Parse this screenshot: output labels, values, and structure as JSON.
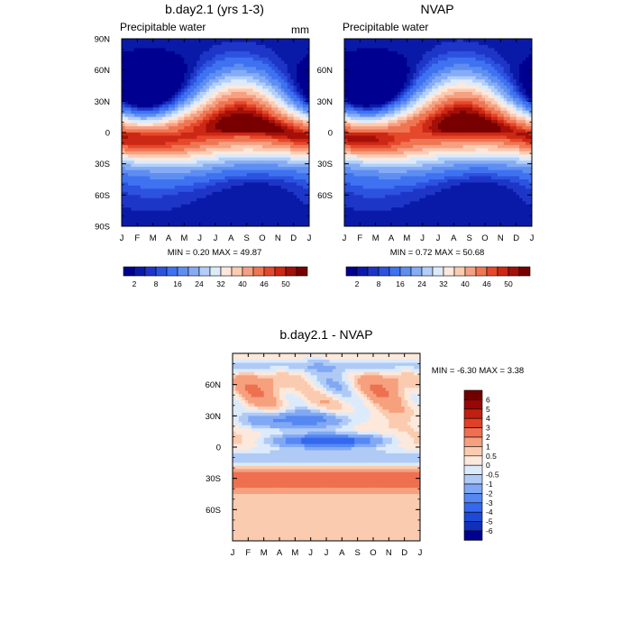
{
  "panels": {
    "model": {
      "title": "b.day2.1 (yrs 1-3)",
      "subtitle": "Precipitable water",
      "units": "mm",
      "stats": "MIN =   0.20 MAX =  49.87"
    },
    "obs": {
      "title": "NVAP",
      "subtitle": "Precipitable water",
      "stats": "MIN =   0.72 MAX =  50.68"
    },
    "diff": {
      "title": "b.day2.1 - NVAP",
      "stats": "MIN =  -6.30 MAX =   3.38"
    }
  },
  "chart_data": [
    {
      "type": "heatmap",
      "title": "b.day2.1 (yrs 1-3)",
      "subtitle": "Precipitable water",
      "units": "mm",
      "x": [
        "J",
        "F",
        "M",
        "A",
        "M",
        "J",
        "J",
        "A",
        "S",
        "O",
        "N",
        "D",
        "J"
      ],
      "y_ticks": [
        "90N",
        "60N",
        "30N",
        "0",
        "30S",
        "60S",
        "90S"
      ],
      "ylim": [
        -90,
        90
      ],
      "min": 0.2,
      "max": 49.87,
      "colorbar_labels": [
        "2",
        "8",
        "16",
        "24",
        "32",
        "40",
        "46",
        "50"
      ],
      "levels": [
        2,
        4,
        6,
        8,
        12,
        16,
        20,
        24,
        28,
        32,
        36,
        40,
        44,
        46,
        48,
        50
      ]
    },
    {
      "type": "heatmap",
      "title": "NVAP",
      "subtitle": "Precipitable water",
      "x": [
        "J",
        "F",
        "M",
        "A",
        "M",
        "J",
        "J",
        "A",
        "S",
        "O",
        "N",
        "D",
        "J"
      ],
      "y_ticks": [
        "60N",
        "30N",
        "0",
        "30S",
        "60S"
      ],
      "ylim": [
        -90,
        90
      ],
      "min": 0.72,
      "max": 50.68,
      "colorbar_labels": [
        "2",
        "8",
        "16",
        "24",
        "32",
        "40",
        "46",
        "50"
      ],
      "levels": [
        2,
        4,
        6,
        8,
        12,
        16,
        20,
        24,
        28,
        32,
        36,
        40,
        44,
        46,
        48,
        50
      ]
    },
    {
      "type": "heatmap",
      "title": "b.day2.1 - NVAP",
      "x": [
        "J",
        "F",
        "M",
        "A",
        "M",
        "J",
        "J",
        "A",
        "S",
        "O",
        "N",
        "D",
        "J"
      ],
      "y_ticks": [
        "60N",
        "30N",
        "0",
        "30S",
        "60S"
      ],
      "ylim": [
        -90,
        90
      ],
      "min": -6.3,
      "max": 3.38,
      "colorbar_labels": [
        "6",
        "5",
        "4",
        "3",
        "2",
        "1",
        "0.5",
        "0",
        "-0.5",
        "-1",
        "-2",
        "-3",
        "-4",
        "-5",
        "-6"
      ],
      "levels": [
        -6,
        -5,
        -4,
        -3,
        -2,
        -1,
        -0.5,
        0,
        0.5,
        1,
        2,
        3,
        4,
        5,
        6
      ]
    }
  ],
  "colors": {
    "seq": [
      "#000090",
      "#0a1aa8",
      "#1e36c8",
      "#2c52e0",
      "#3f72f0",
      "#5e8ef2",
      "#85acf4",
      "#b3cff8",
      "#dcebfc",
      "#fde8dc",
      "#fbcbb2",
      "#f6a083",
      "#ef7652",
      "#e6482c",
      "#cc2815",
      "#a41008",
      "#780000"
    ],
    "div": [
      "#000090",
      "#1030bc",
      "#1e4ad8",
      "#3568ee",
      "#5688f2",
      "#80a8f4",
      "#b0caf6",
      "#dcebfc",
      "#fde8dc",
      "#fbcbb0",
      "#f6a07e",
      "#ee7050",
      "#e04026",
      "#c02010",
      "#980606",
      "#700000"
    ]
  }
}
